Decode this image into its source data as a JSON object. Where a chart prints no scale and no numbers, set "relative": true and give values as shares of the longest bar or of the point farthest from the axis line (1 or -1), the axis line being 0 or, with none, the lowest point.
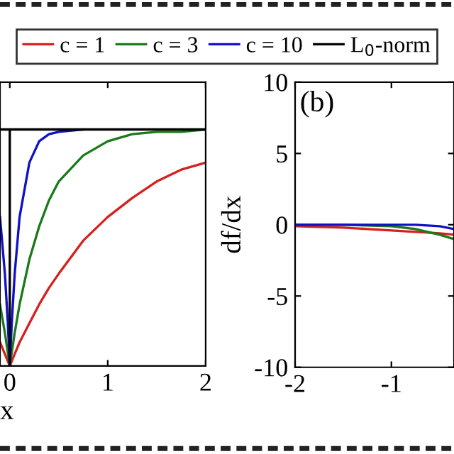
{
  "chart_data": [
    {
      "type": "line",
      "relative": true,
      "xlabel": "x",
      "xlim": [
        -0.1,
        2
      ],
      "xticks": [
        0,
        1,
        2
      ],
      "tick_labels": "x",
      "legend": "top",
      "grid": false,
      "series": [
        {
          "name": "c = 1",
          "color": "#d62020",
          "x": [
            -0.1,
            -0.05,
            0,
            0.05,
            0.1,
            0.2,
            0.3,
            0.4,
            0.5,
            0.75,
            1,
            1.25,
            1.5,
            1.75,
            2
          ],
          "values": [
            0.1,
            0.05,
            0,
            0.05,
            0.1,
            0.18,
            0.26,
            0.33,
            0.39,
            0.53,
            0.63,
            0.71,
            0.78,
            0.83,
            0.86
          ]
        },
        {
          "name": "c = 3",
          "color": "#1a7a1a",
          "x": [
            -0.1,
            -0.05,
            0,
            0.05,
            0.1,
            0.2,
            0.3,
            0.4,
            0.5,
            0.75,
            1,
            1.25,
            1.5,
            1.75,
            2
          ],
          "values": [
            0.26,
            0.14,
            0,
            0.14,
            0.26,
            0.45,
            0.59,
            0.7,
            0.78,
            0.89,
            0.95,
            0.98,
            0.99,
            0.99,
            1
          ]
        },
        {
          "name": "c = 10",
          "color": "#1010c8",
          "x": [
            -0.1,
            -0.05,
            -0.02,
            0,
            0.02,
            0.05,
            0.1,
            0.2,
            0.3,
            0.4,
            0.5,
            0.75
          ],
          "values": [
            0.63,
            0.39,
            0.18,
            0,
            0.18,
            0.39,
            0.63,
            0.86,
            0.95,
            0.98,
            0.99,
            1
          ]
        },
        {
          "name": "L$_{0}$-norm",
          "color": "#000000",
          "x": [
            -0.1,
            0,
            0,
            0,
            2
          ],
          "values": [
            1,
            1,
            0,
            1,
            1
          ]
        }
      ]
    },
    {
      "type": "line",
      "ylabel": "df/dx",
      "xlim": [
        -2,
        -0.35
      ],
      "xticks": [
        -2,
        -1
      ],
      "ylim": [
        -10,
        10
      ],
      "yticks": [
        -10,
        -5,
        0,
        5,
        10
      ],
      "grid": false,
      "annotations": [
        "(b)"
      ],
      "series": [
        {
          "color": "#d62020",
          "x": [
            -2,
            -1.5,
            -1,
            -0.75,
            -0.5,
            -0.35
          ],
          "values": [
            -0.1,
            -0.2,
            -0.4,
            -0.5,
            -0.6,
            -0.7
          ]
        },
        {
          "color": "#1a7a1a",
          "x": [
            -2,
            -1.5,
            -1,
            -0.75,
            -0.5,
            -0.35
          ],
          "values": [
            0,
            0,
            -0.1,
            -0.3,
            -0.7,
            -1.0
          ]
        },
        {
          "color": "#1010c8",
          "x": [
            -2,
            -1.5,
            -1,
            -0.75,
            -0.5,
            -0.35
          ],
          "values": [
            0,
            0,
            0,
            0,
            -0.1,
            -0.3
          ]
        }
      ]
    }
  ]
}
